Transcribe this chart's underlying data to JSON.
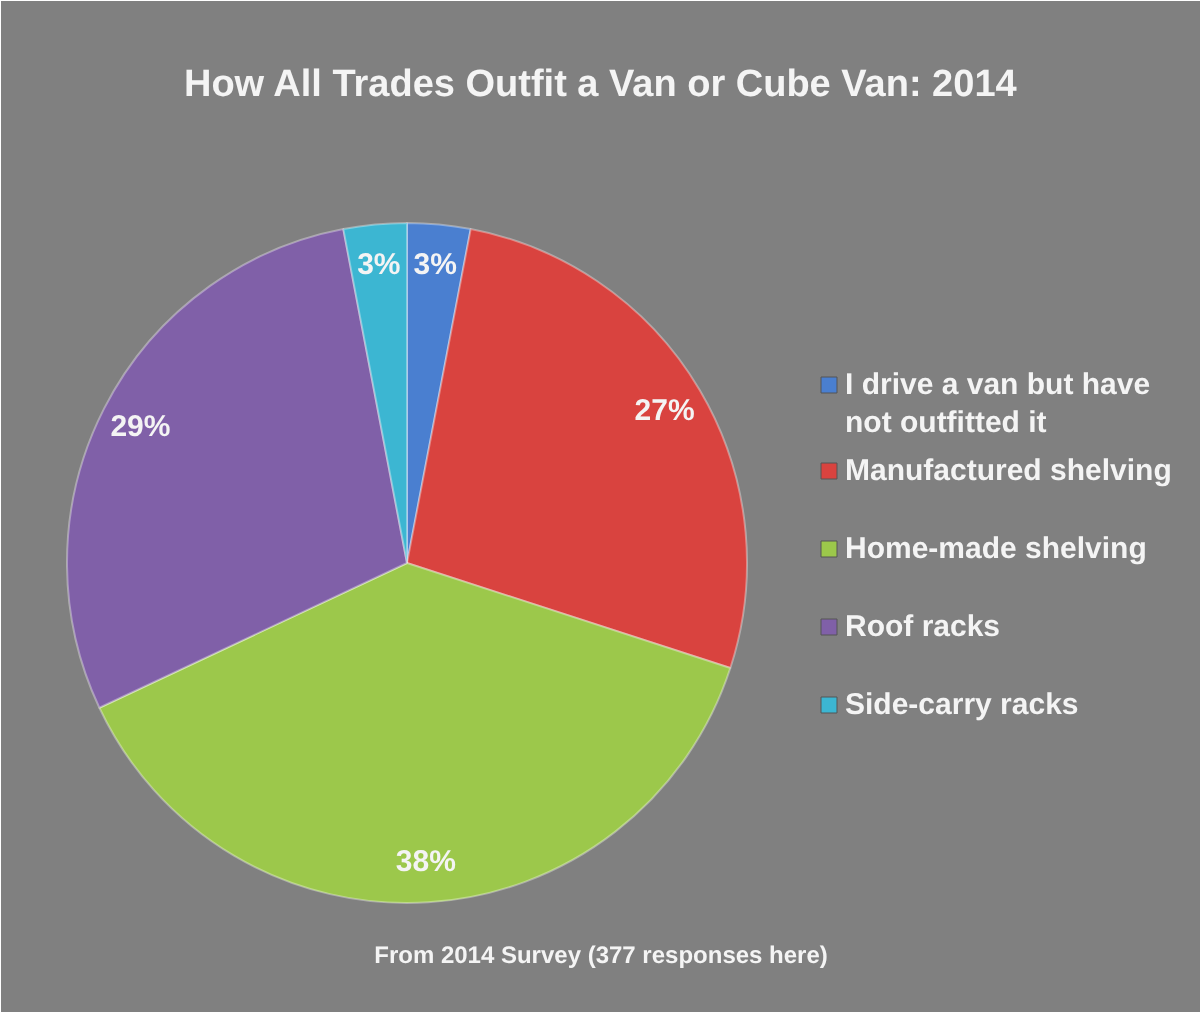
{
  "chart_data": {
    "type": "pie",
    "title": "How All Trades Outfit a Van or Cube Van: 2014",
    "categories": [
      "I drive a van but have not outfitted it",
      "Manufactured shelving",
      "Home-made shelving",
      "Roof racks",
      "Side-carry racks"
    ],
    "values": [
      3,
      27,
      38,
      29,
      3
    ],
    "colors": [
      "#4a7fd0",
      "#d9433f",
      "#9cc84b",
      "#8060a8",
      "#3cb6d2"
    ],
    "value_labels": [
      "3%",
      "27%",
      "38%",
      "29%",
      "3%"
    ],
    "legend": "right",
    "annotations": [
      "From 2014 Survey (377 responses here)"
    ]
  }
}
